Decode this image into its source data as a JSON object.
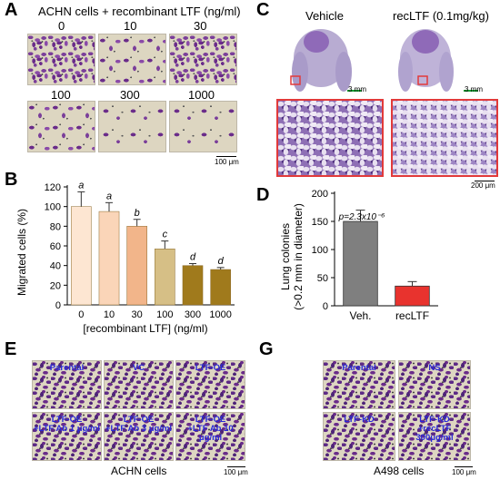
{
  "panel_labels": {
    "a": "A",
    "b": "B",
    "c": "C",
    "d": "D",
    "e": "E",
    "g": "G"
  },
  "panelA": {
    "title": "ACHN cells + recombinant LTF (ng/ml)",
    "concentrations": [
      "0",
      "10",
      "30",
      "100",
      "300",
      "1000"
    ],
    "scale_label": "100 μm"
  },
  "panelC": {
    "labels": [
      "Vehicle",
      "recLTF (0.1mg/kg)"
    ],
    "scale_mm": "3 mm",
    "scale_um": "200 μm"
  },
  "panelE": {
    "well_labels": [
      "Parental",
      "VC",
      "LTF-OE",
      "LTF-OE\n+LTF Ab 1 μg/ml",
      "LTF-OE\n+LTF Ab 3 μg/ml",
      "LTF-OE\n+LTF Ab 10 μg/ml"
    ],
    "caption": "ACHN cells",
    "scale_label": "100 μm"
  },
  "panelG": {
    "well_labels": [
      "Parental",
      "NS",
      "LTF-KD",
      "LTF-KD\n+recLTF 300μg/ml"
    ],
    "caption": "A498 cells",
    "scale_label": "100 μm"
  },
  "chart_data": [
    {
      "type": "bar",
      "panel": "B",
      "categories": [
        "0",
        "10",
        "30",
        "100",
        "300",
        "1000"
      ],
      "values": [
        100,
        95,
        80,
        57,
        40,
        36
      ],
      "errors": [
        15,
        9,
        7,
        8,
        2,
        2
      ],
      "significance_letters": [
        "a",
        "a",
        "b",
        "c",
        "d",
        "d"
      ],
      "bar_colors": [
        "#fde6d2",
        "#fad5b8",
        "#f2b58a",
        "#d6bf86",
        "#a07a1c",
        "#a07a1c"
      ],
      "xlabel": "[recombinant LTF] (ng/ml)",
      "ylabel": "Migrated cells (%)",
      "ylim": [
        0,
        120
      ],
      "yticks": [
        "0",
        "20",
        "40",
        "60",
        "80",
        "100",
        "120"
      ]
    },
    {
      "type": "bar",
      "panel": "D",
      "categories": [
        "Veh.",
        "recLTF"
      ],
      "values": [
        150,
        35
      ],
      "errors": [
        20,
        8
      ],
      "bar_colors": [
        "#7f7f7f",
        "#e8332e"
      ],
      "annotation": "p=2.3x10⁻⁶",
      "ylabel_lines": [
        "Lung colonies",
        "(>0.2 mm in diameter)"
      ],
      "ylim": [
        0,
        200
      ],
      "yticks": [
        "0",
        "50",
        "100",
        "150",
        "200"
      ]
    }
  ]
}
